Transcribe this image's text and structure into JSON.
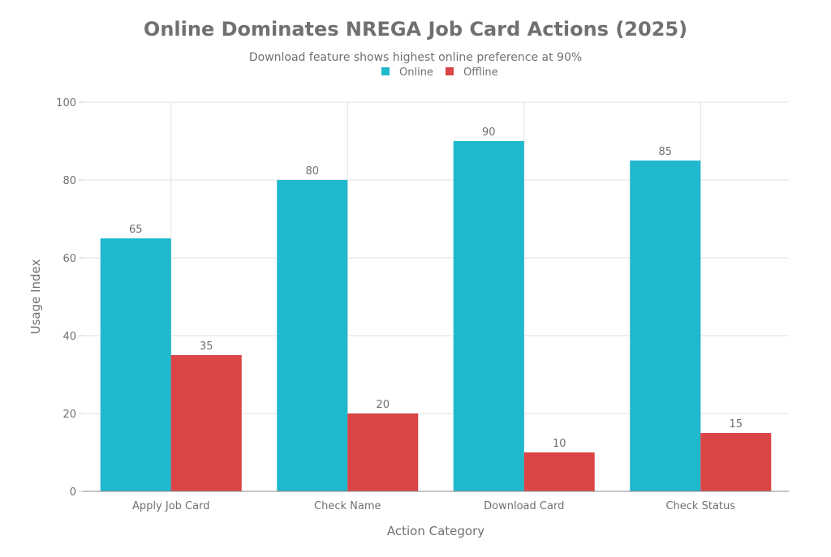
{
  "chart_data": {
    "type": "bar",
    "title": "Online Dominates NREGA Job Card Actions (2025)",
    "subtitle": "Download feature shows highest online preference at 90%",
    "xlabel": "Action Category",
    "ylabel": "Usage Index",
    "categories": [
      "Apply Job Card",
      "Check Name",
      "Download Card",
      "Check Status"
    ],
    "series": [
      {
        "name": "Online",
        "color": "#1FB8CD",
        "values": [
          65,
          80,
          90,
          85
        ]
      },
      {
        "name": "Offline",
        "color": "#DB4545",
        "values": [
          35,
          20,
          10,
          15
        ]
      }
    ],
    "ylim": [
      0,
      100
    ],
    "yticks": [
      0,
      20,
      40,
      60,
      80,
      100
    ],
    "grid": true,
    "legend": "top-center",
    "data_labels": true
  }
}
